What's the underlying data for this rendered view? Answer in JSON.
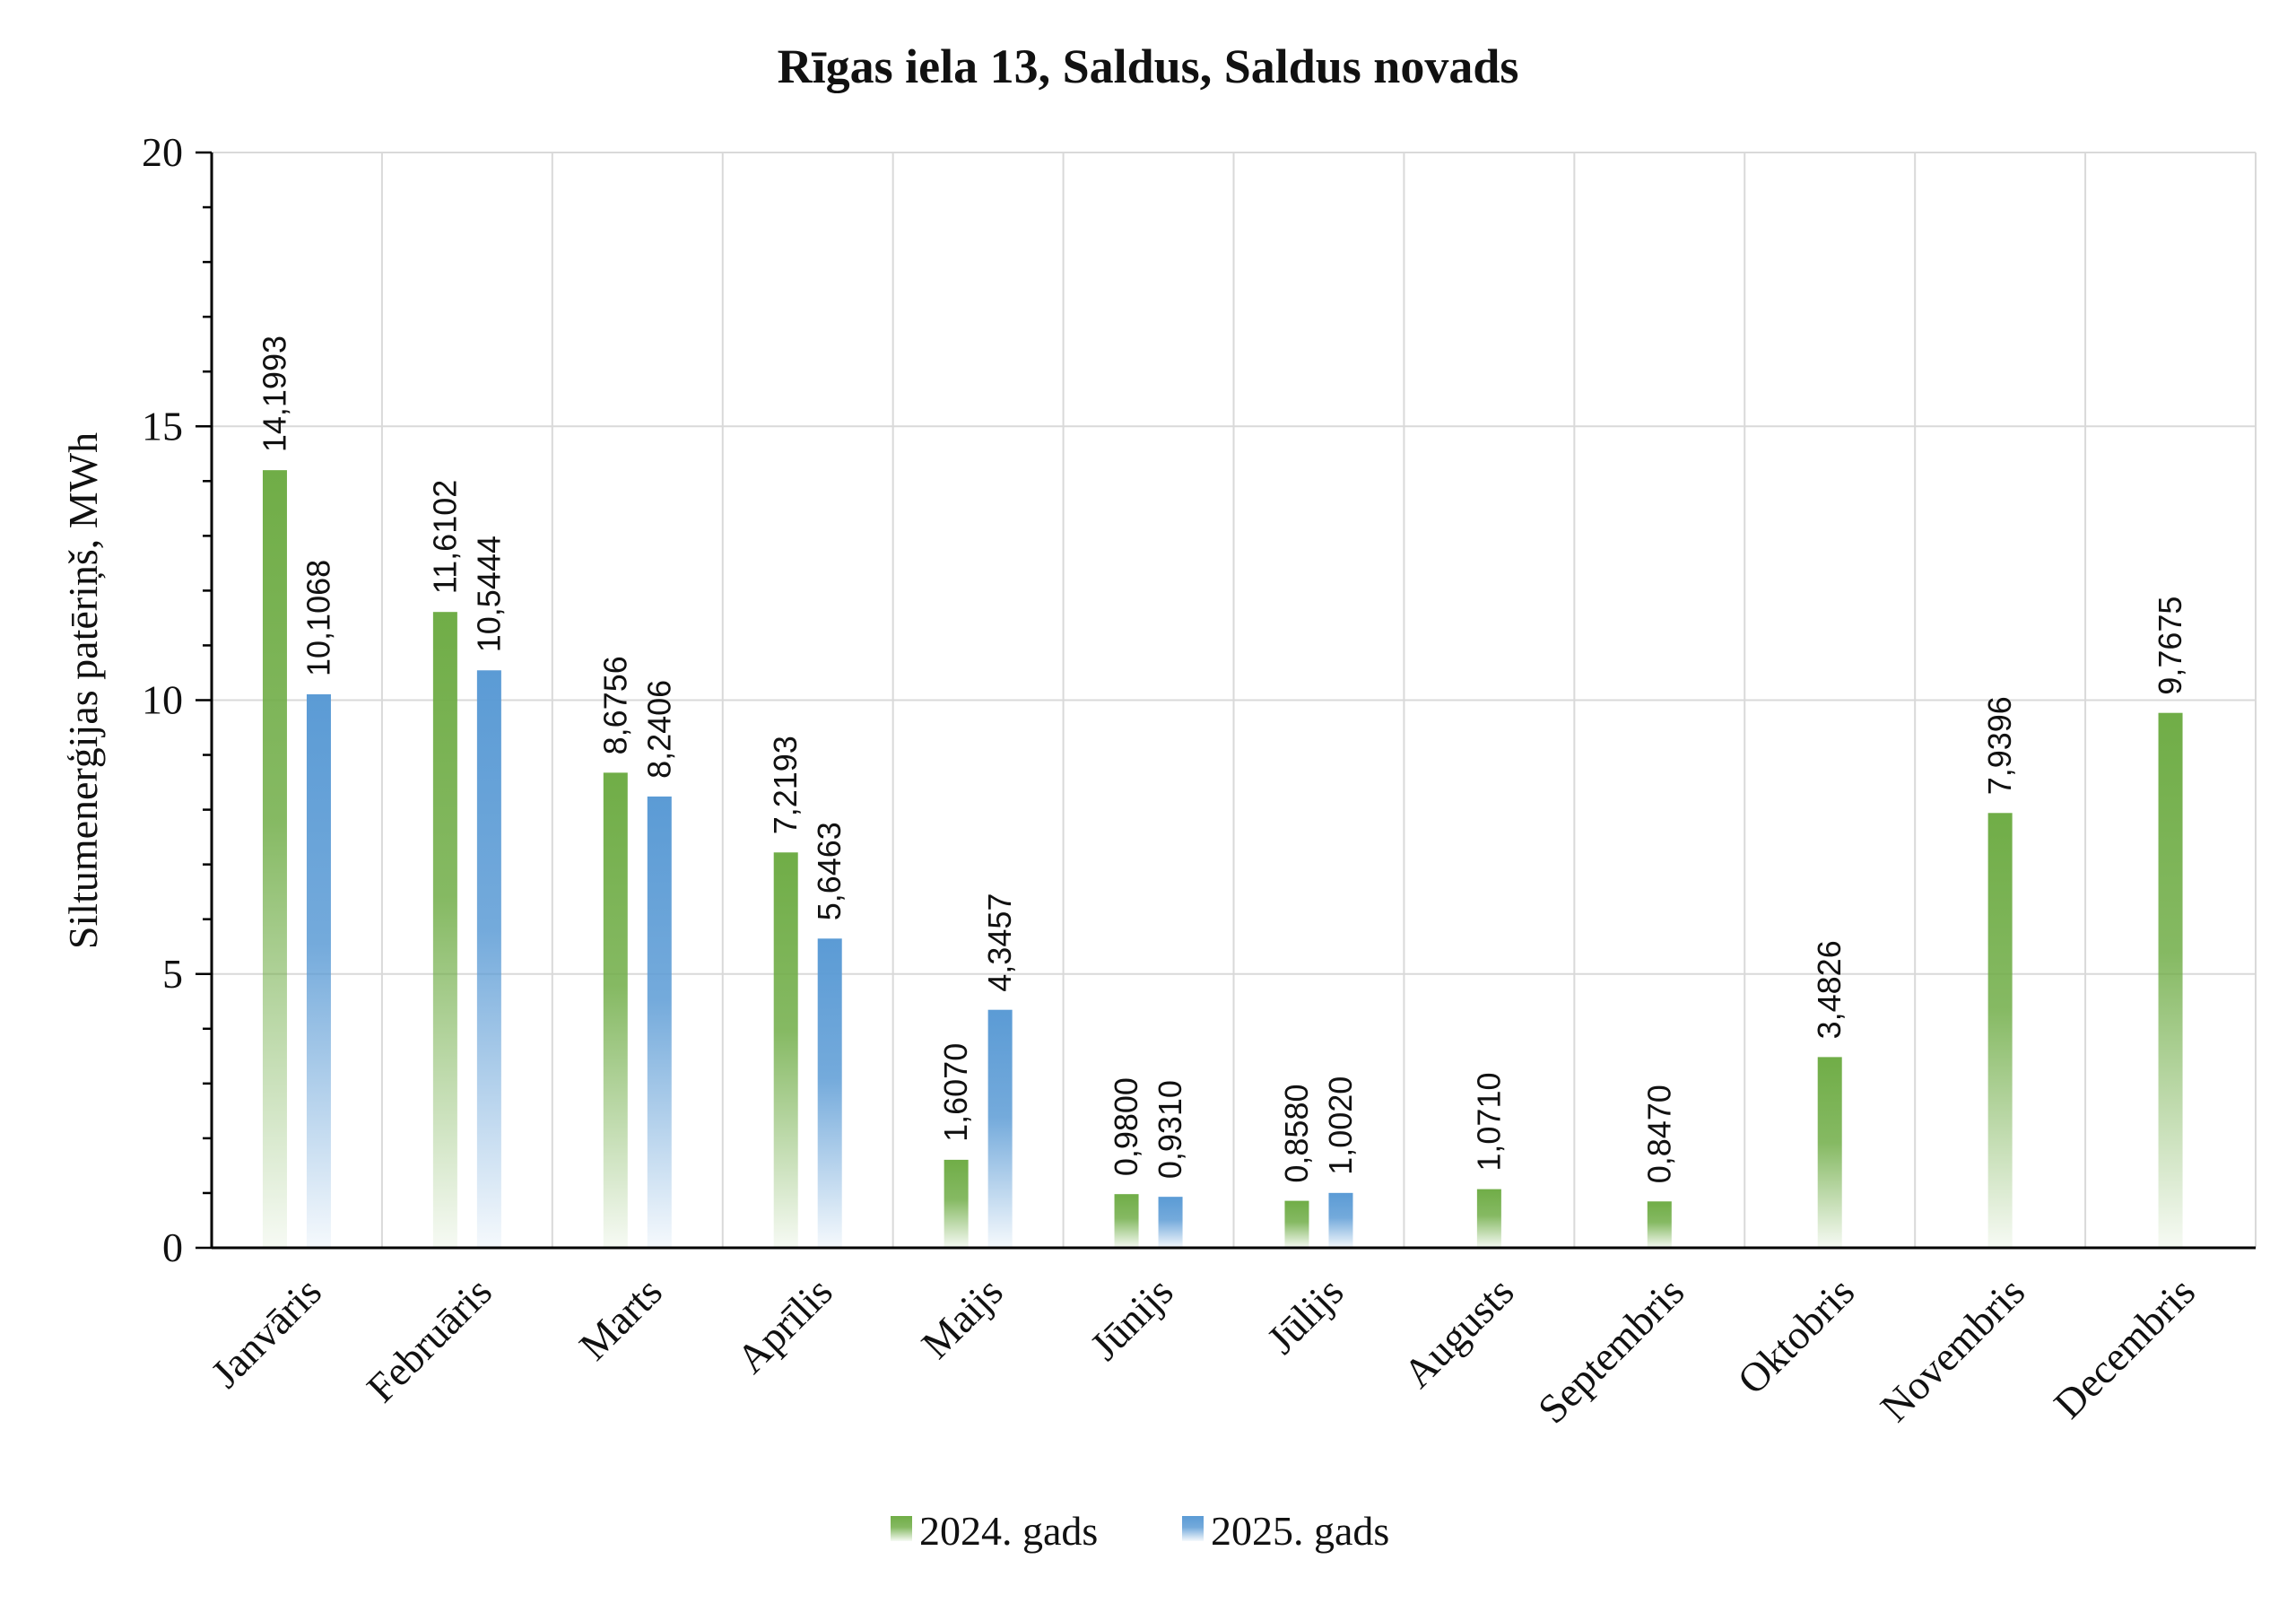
{
  "chart_data": {
    "type": "bar",
    "title": "Rīgas iela 13, Saldus, Saldus novads",
    "xlabel": "",
    "ylabel": "Siltumenerģijas patēriņš, MWh",
    "ylim": [
      0,
      20
    ],
    "yticks": [
      0,
      5,
      10,
      15,
      20
    ],
    "grid": true,
    "legend_position": "bottom",
    "categories": [
      "Janvāris",
      "Februāris",
      "Marts",
      "Aprīlis",
      "Maijs",
      "Jūnijs",
      "Jūlijs",
      "Augusts",
      "Septembris",
      "Oktobris",
      "Novembris",
      "Decembris"
    ],
    "series": [
      {
        "name": "2024. gads",
        "color": "#70ad47",
        "values": [
          14.1993,
          11.6102,
          8.6756,
          7.2193,
          1.607,
          0.98,
          0.858,
          1.071,
          0.847,
          3.4826,
          7.9396,
          9.7675
        ],
        "labels": [
          "14,1993",
          "11,6102",
          "8,6756",
          "7,2193",
          "1,6070",
          "0,9800",
          "0,8580",
          "1,0710",
          "0,8470",
          "3,4826",
          "7,9396",
          "9,7675"
        ]
      },
      {
        "name": "2025. gads",
        "color": "#5b9bd5",
        "values": [
          10.1068,
          10.5444,
          8.2406,
          5.6463,
          4.3457,
          0.931,
          1.002,
          null,
          null,
          null,
          null,
          null
        ],
        "labels": [
          "10,1068",
          "10,5444",
          "8,2406",
          "5,6463",
          "4,3457",
          "0,9310",
          "1,0020",
          null,
          null,
          null,
          null,
          null
        ]
      }
    ]
  }
}
